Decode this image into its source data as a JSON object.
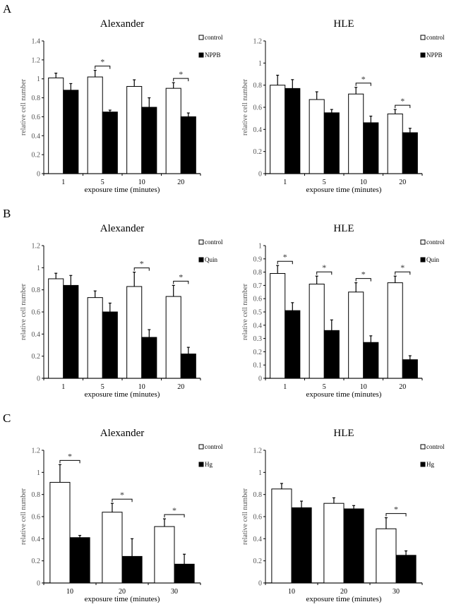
{
  "colors": {
    "control": "#ffffff",
    "treatment": "#000000",
    "axis": "#000000",
    "tick_text": "#555555"
  },
  "chart_data": [
    {
      "panel_letter": "A",
      "type": "bar",
      "title": "Alexander",
      "xlabel": "exposure time (minutes)",
      "ylabel": "relative cell number",
      "categories": [
        "1",
        "5",
        "10",
        "20"
      ],
      "ylim": [
        0,
        1.4
      ],
      "ytick_step": 0.2,
      "grid": false,
      "legend_placement": "top-right",
      "error_bars": true,
      "series": [
        {
          "name": "control",
          "values": [
            1.01,
            1.02,
            0.92,
            0.9
          ],
          "errors": [
            0.05,
            0.07,
            0.07,
            0.06
          ]
        },
        {
          "name": "NPPB",
          "values": [
            0.88,
            0.65,
            0.7,
            0.6
          ],
          "errors": [
            0.07,
            0.02,
            0.1,
            0.04
          ]
        }
      ],
      "significant": [
        "5",
        "20"
      ],
      "significance_mark": "*"
    },
    {
      "panel_letter": "",
      "type": "bar",
      "title": "HLE",
      "xlabel": "exposure time (minutes)",
      "ylabel": "relative cell number",
      "categories": [
        "1",
        "5",
        "10",
        "20"
      ],
      "ylim": [
        0,
        1.2
      ],
      "ytick_step": 0.2,
      "grid": false,
      "legend_placement": "top-right",
      "error_bars": true,
      "series": [
        {
          "name": "control",
          "values": [
            0.8,
            0.67,
            0.72,
            0.54
          ],
          "errors": [
            0.09,
            0.07,
            0.06,
            0.04
          ]
        },
        {
          "name": "NPPB",
          "values": [
            0.77,
            0.55,
            0.46,
            0.37
          ],
          "errors": [
            0.08,
            0.03,
            0.06,
            0.04
          ]
        }
      ],
      "significant": [
        "10",
        "20"
      ],
      "significance_mark": "*"
    },
    {
      "panel_letter": "B",
      "type": "bar",
      "title": "Alexander",
      "xlabel": "exposure time (minutes)",
      "ylabel": "relative cell number",
      "categories": [
        "1",
        "5",
        "10",
        "20"
      ],
      "ylim": [
        0,
        1.2
      ],
      "ytick_step": 0.2,
      "grid": false,
      "legend_placement": "top-right",
      "error_bars": true,
      "series": [
        {
          "name": "control",
          "values": [
            0.9,
            0.73,
            0.83,
            0.74
          ],
          "errors": [
            0.05,
            0.06,
            0.13,
            0.1
          ]
        },
        {
          "name": "Quin",
          "values": [
            0.84,
            0.6,
            0.37,
            0.22
          ],
          "errors": [
            0.09,
            0.08,
            0.07,
            0.06
          ]
        }
      ],
      "significant": [
        "10",
        "20"
      ],
      "significance_mark": "*"
    },
    {
      "panel_letter": "",
      "type": "bar",
      "title": "HLE",
      "xlabel": "exposure time (minutes)",
      "ylabel": "relative cell number",
      "categories": [
        "1",
        "5",
        "10",
        "20"
      ],
      "ylim": [
        0,
        1.0
      ],
      "ytick_step": 0.1,
      "grid": false,
      "legend_placement": "top-right",
      "error_bars": true,
      "series": [
        {
          "name": "control",
          "values": [
            0.79,
            0.71,
            0.65,
            0.72
          ],
          "errors": [
            0.06,
            0.06,
            0.07,
            0.05
          ]
        },
        {
          "name": "Quin",
          "values": [
            0.51,
            0.36,
            0.27,
            0.14
          ],
          "errors": [
            0.06,
            0.08,
            0.05,
            0.03
          ]
        }
      ],
      "significant": [
        "1",
        "5",
        "10",
        "20"
      ],
      "significance_mark": "*"
    },
    {
      "panel_letter": "C",
      "type": "bar",
      "title": "Alexander",
      "xlabel": "exposure time (minutes)",
      "ylabel": "relative cell number",
      "categories": [
        "10",
        "20",
        "30"
      ],
      "ylim": [
        0,
        1.2
      ],
      "ytick_step": 0.2,
      "grid": false,
      "legend_placement": "top-right",
      "error_bars": true,
      "series": [
        {
          "name": "control",
          "values": [
            0.91,
            0.64,
            0.51
          ],
          "errors": [
            0.16,
            0.08,
            0.07
          ]
        },
        {
          "name": "Hg",
          "values": [
            0.41,
            0.24,
            0.17
          ],
          "errors": [
            0.02,
            0.16,
            0.09
          ]
        }
      ],
      "significant": [
        "10",
        "20",
        "30"
      ],
      "significance_mark": "*"
    },
    {
      "panel_letter": "",
      "type": "bar",
      "title": "HLE",
      "xlabel": "exposure time (minutes)",
      "ylabel": "relative cell number",
      "categories": [
        "10",
        "20",
        "30"
      ],
      "ylim": [
        0,
        1.2
      ],
      "ytick_step": 0.2,
      "grid": false,
      "legend_placement": "top-right",
      "error_bars": true,
      "series": [
        {
          "name": "control",
          "values": [
            0.85,
            0.72,
            0.49
          ],
          "errors": [
            0.05,
            0.05,
            0.1
          ]
        },
        {
          "name": "Hg",
          "values": [
            0.68,
            0.67,
            0.25
          ],
          "errors": [
            0.06,
            0.03,
            0.04
          ]
        }
      ],
      "significant": [
        "30"
      ],
      "significance_mark": "*"
    }
  ]
}
